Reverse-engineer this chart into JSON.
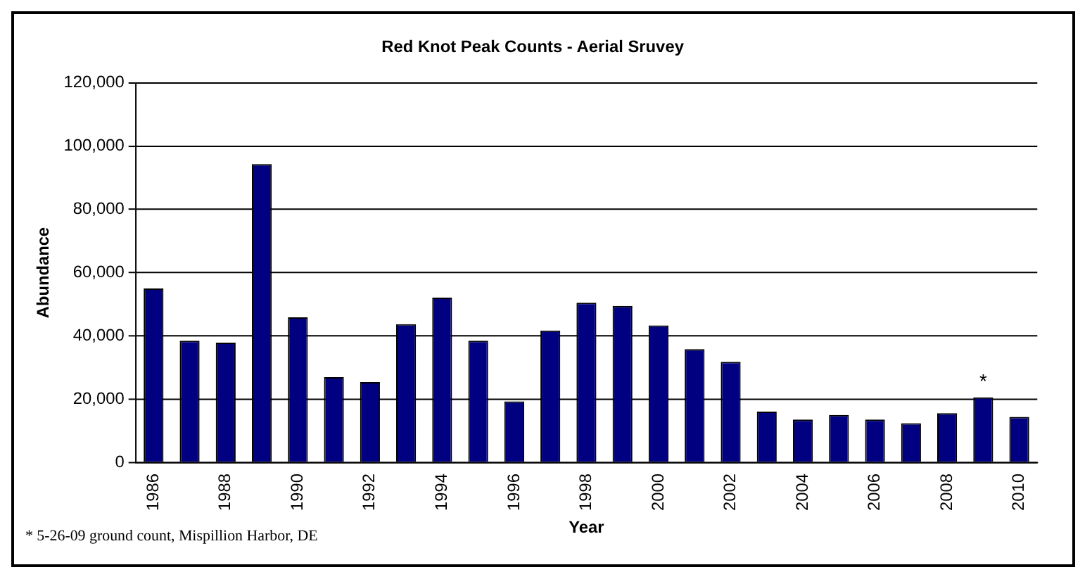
{
  "chart_data": {
    "type": "bar",
    "title": "Red Knot Peak Counts - Aerial Sruvey",
    "xlabel": "Year",
    "ylabel": "Abundance",
    "categories": [
      "1986",
      null,
      "1988",
      null,
      "1990",
      null,
      "1992",
      null,
      "1994",
      null,
      "1996",
      null,
      "1998",
      null,
      "2000",
      null,
      "2002",
      null,
      "2004",
      null,
      "2006",
      null,
      "2008",
      null,
      "2010"
    ],
    "values": [
      55000,
      38500,
      37900,
      94300,
      45900,
      27000,
      25400,
      43700,
      52100,
      38500,
      19300,
      41700,
      50500,
      49500,
      43300,
      35800,
      31800,
      16100,
      13600,
      15000,
      13600,
      12400,
      15600,
      20600,
      14400
    ],
    "color": "#000080",
    "ylim": [
      0,
      120000
    ],
    "yticks": [
      0,
      {
        "value": 20000,
        "label": "20,000"
      },
      {
        "value": 40000,
        "label": "40,000"
      },
      {
        "value": 60000,
        "label": "60,000"
      },
      {
        "value": 80000,
        "label": "80,000"
      },
      {
        "value": 100000,
        "label": "100,000"
      },
      {
        "value": 120000,
        "label": "120,000"
      }
    ],
    "grid": "y",
    "legend": false,
    "annotations": [
      {
        "text": "*",
        "y": 20600
      },
      "* 5-26-09 ground count, Mispillion Harbor, DE"
    ]
  }
}
